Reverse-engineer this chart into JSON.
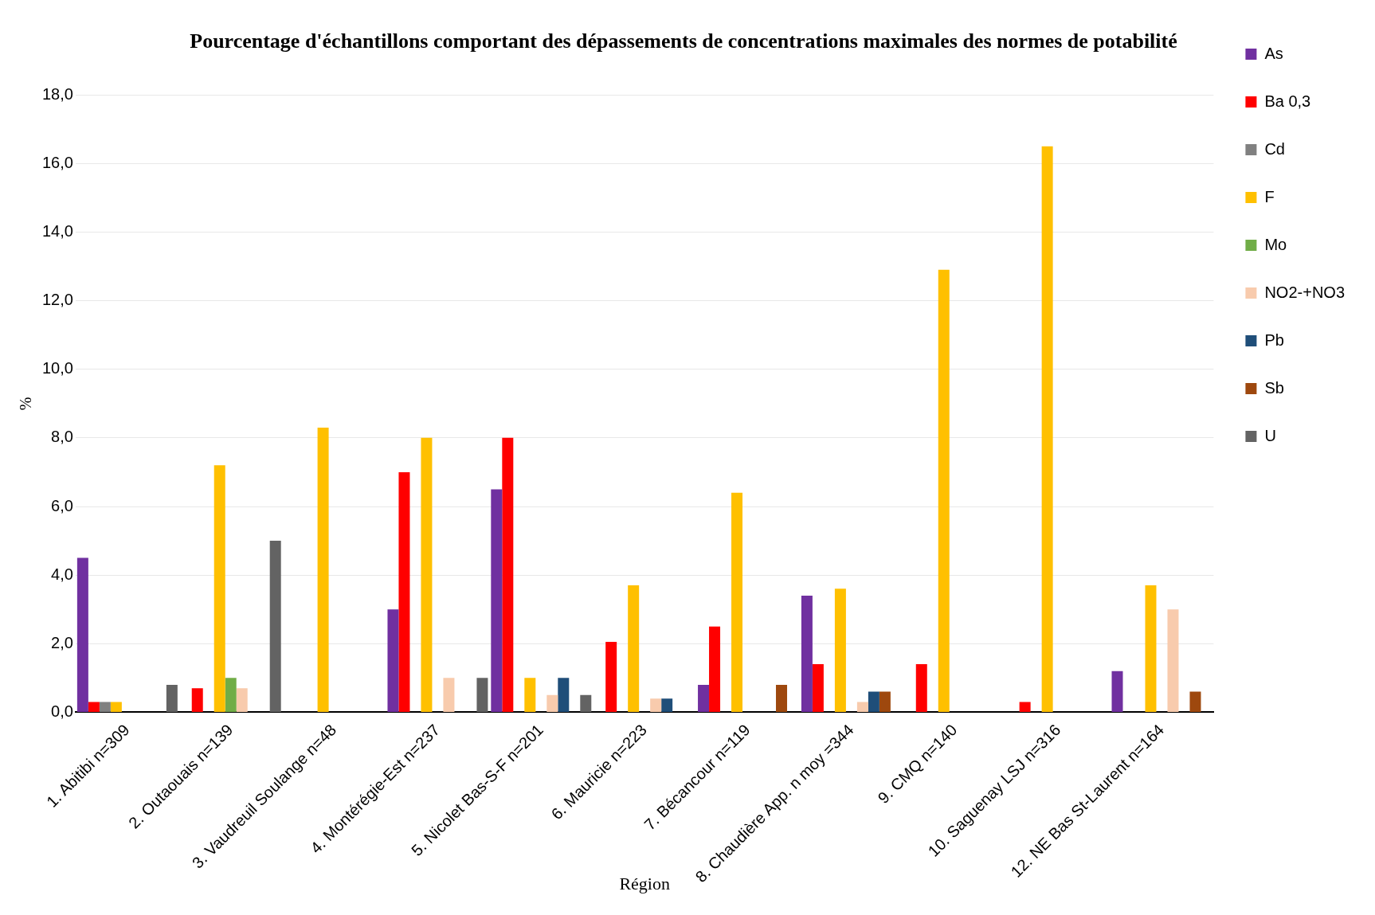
{
  "chart_data": {
    "type": "bar",
    "title": "Pourcentage d'échantillons comportant des dépassements de concentrations maximales des normes de potabilité",
    "xlabel": "Région",
    "ylabel": "%",
    "categories": [
      "1. Abitibi n=309",
      "2. Outaouais n=139",
      "3. Vaudreuil Soulange n=48",
      "4. Montérégie-Est n=237",
      "5. Nicolet Bas-S-F n=201",
      "6. Mauricie n=223",
      "7. Bécancour n=119",
      "8. Chaudière App. n moy =344",
      "9. CMQ n=140",
      "10. Saguenay LSJ n=316",
      "12. NE Bas St-Laurent n=164"
    ],
    "series": [
      {
        "name": "As",
        "color": "#7030a0",
        "values": [
          4.5,
          null,
          null,
          3.0,
          6.5,
          null,
          0.8,
          3.4,
          null,
          null,
          1.2
        ]
      },
      {
        "name": "Ba 0,3",
        "color": "#ff0000",
        "values": [
          0.3,
          0.7,
          null,
          7.0,
          8.0,
          2.05,
          2.5,
          1.4,
          1.4,
          0.3,
          null
        ]
      },
      {
        "name": "Cd",
        "color": "#808080",
        "values": [
          0.3,
          null,
          null,
          null,
          null,
          null,
          null,
          null,
          null,
          null,
          null
        ]
      },
      {
        "name": "F",
        "color": "#ffc000",
        "values": [
          0.3,
          7.2,
          8.3,
          8.0,
          1.0,
          3.7,
          6.4,
          3.6,
          12.9,
          16.5,
          3.7
        ]
      },
      {
        "name": "Mo",
        "color": "#70ad47",
        "values": [
          null,
          1.0,
          null,
          null,
          null,
          null,
          null,
          null,
          null,
          null,
          null
        ]
      },
      {
        "name": "NO2-+NO3",
        "color": "#f8cbad",
        "values": [
          null,
          0.7,
          null,
          1.0,
          0.5,
          0.4,
          null,
          0.3,
          null,
          null,
          3.0
        ]
      },
      {
        "name": "Pb",
        "color": "#1f4e79",
        "values": [
          null,
          null,
          null,
          null,
          1.0,
          0.4,
          null,
          0.6,
          null,
          null,
          null
        ]
      },
      {
        "name": "Sb",
        "color": "#9e480e",
        "values": [
          null,
          null,
          null,
          null,
          null,
          null,
          0.8,
          0.6,
          null,
          null,
          0.6
        ]
      },
      {
        "name": "U",
        "color": "#636363",
        "values": [
          0.8,
          5.0,
          null,
          1.0,
          0.5,
          null,
          null,
          null,
          null,
          null,
          null
        ]
      }
    ],
    "ylim": [
      0,
      18
    ],
    "yticks": [
      {
        "value": 0,
        "label": "0,0"
      },
      {
        "value": 2,
        "label": "2,0"
      },
      {
        "value": 4,
        "label": "4,0"
      },
      {
        "value": 6,
        "label": "6,0"
      },
      {
        "value": 8,
        "label": "8,0"
      },
      {
        "value": 10,
        "label": "10,0"
      },
      {
        "value": 12,
        "label": "12,0"
      },
      {
        "value": 14,
        "label": "14,0"
      },
      {
        "value": 16,
        "label": "16,0"
      },
      {
        "value": 18,
        "label": "18,0"
      }
    ],
    "grid": "y",
    "legend": "right"
  }
}
